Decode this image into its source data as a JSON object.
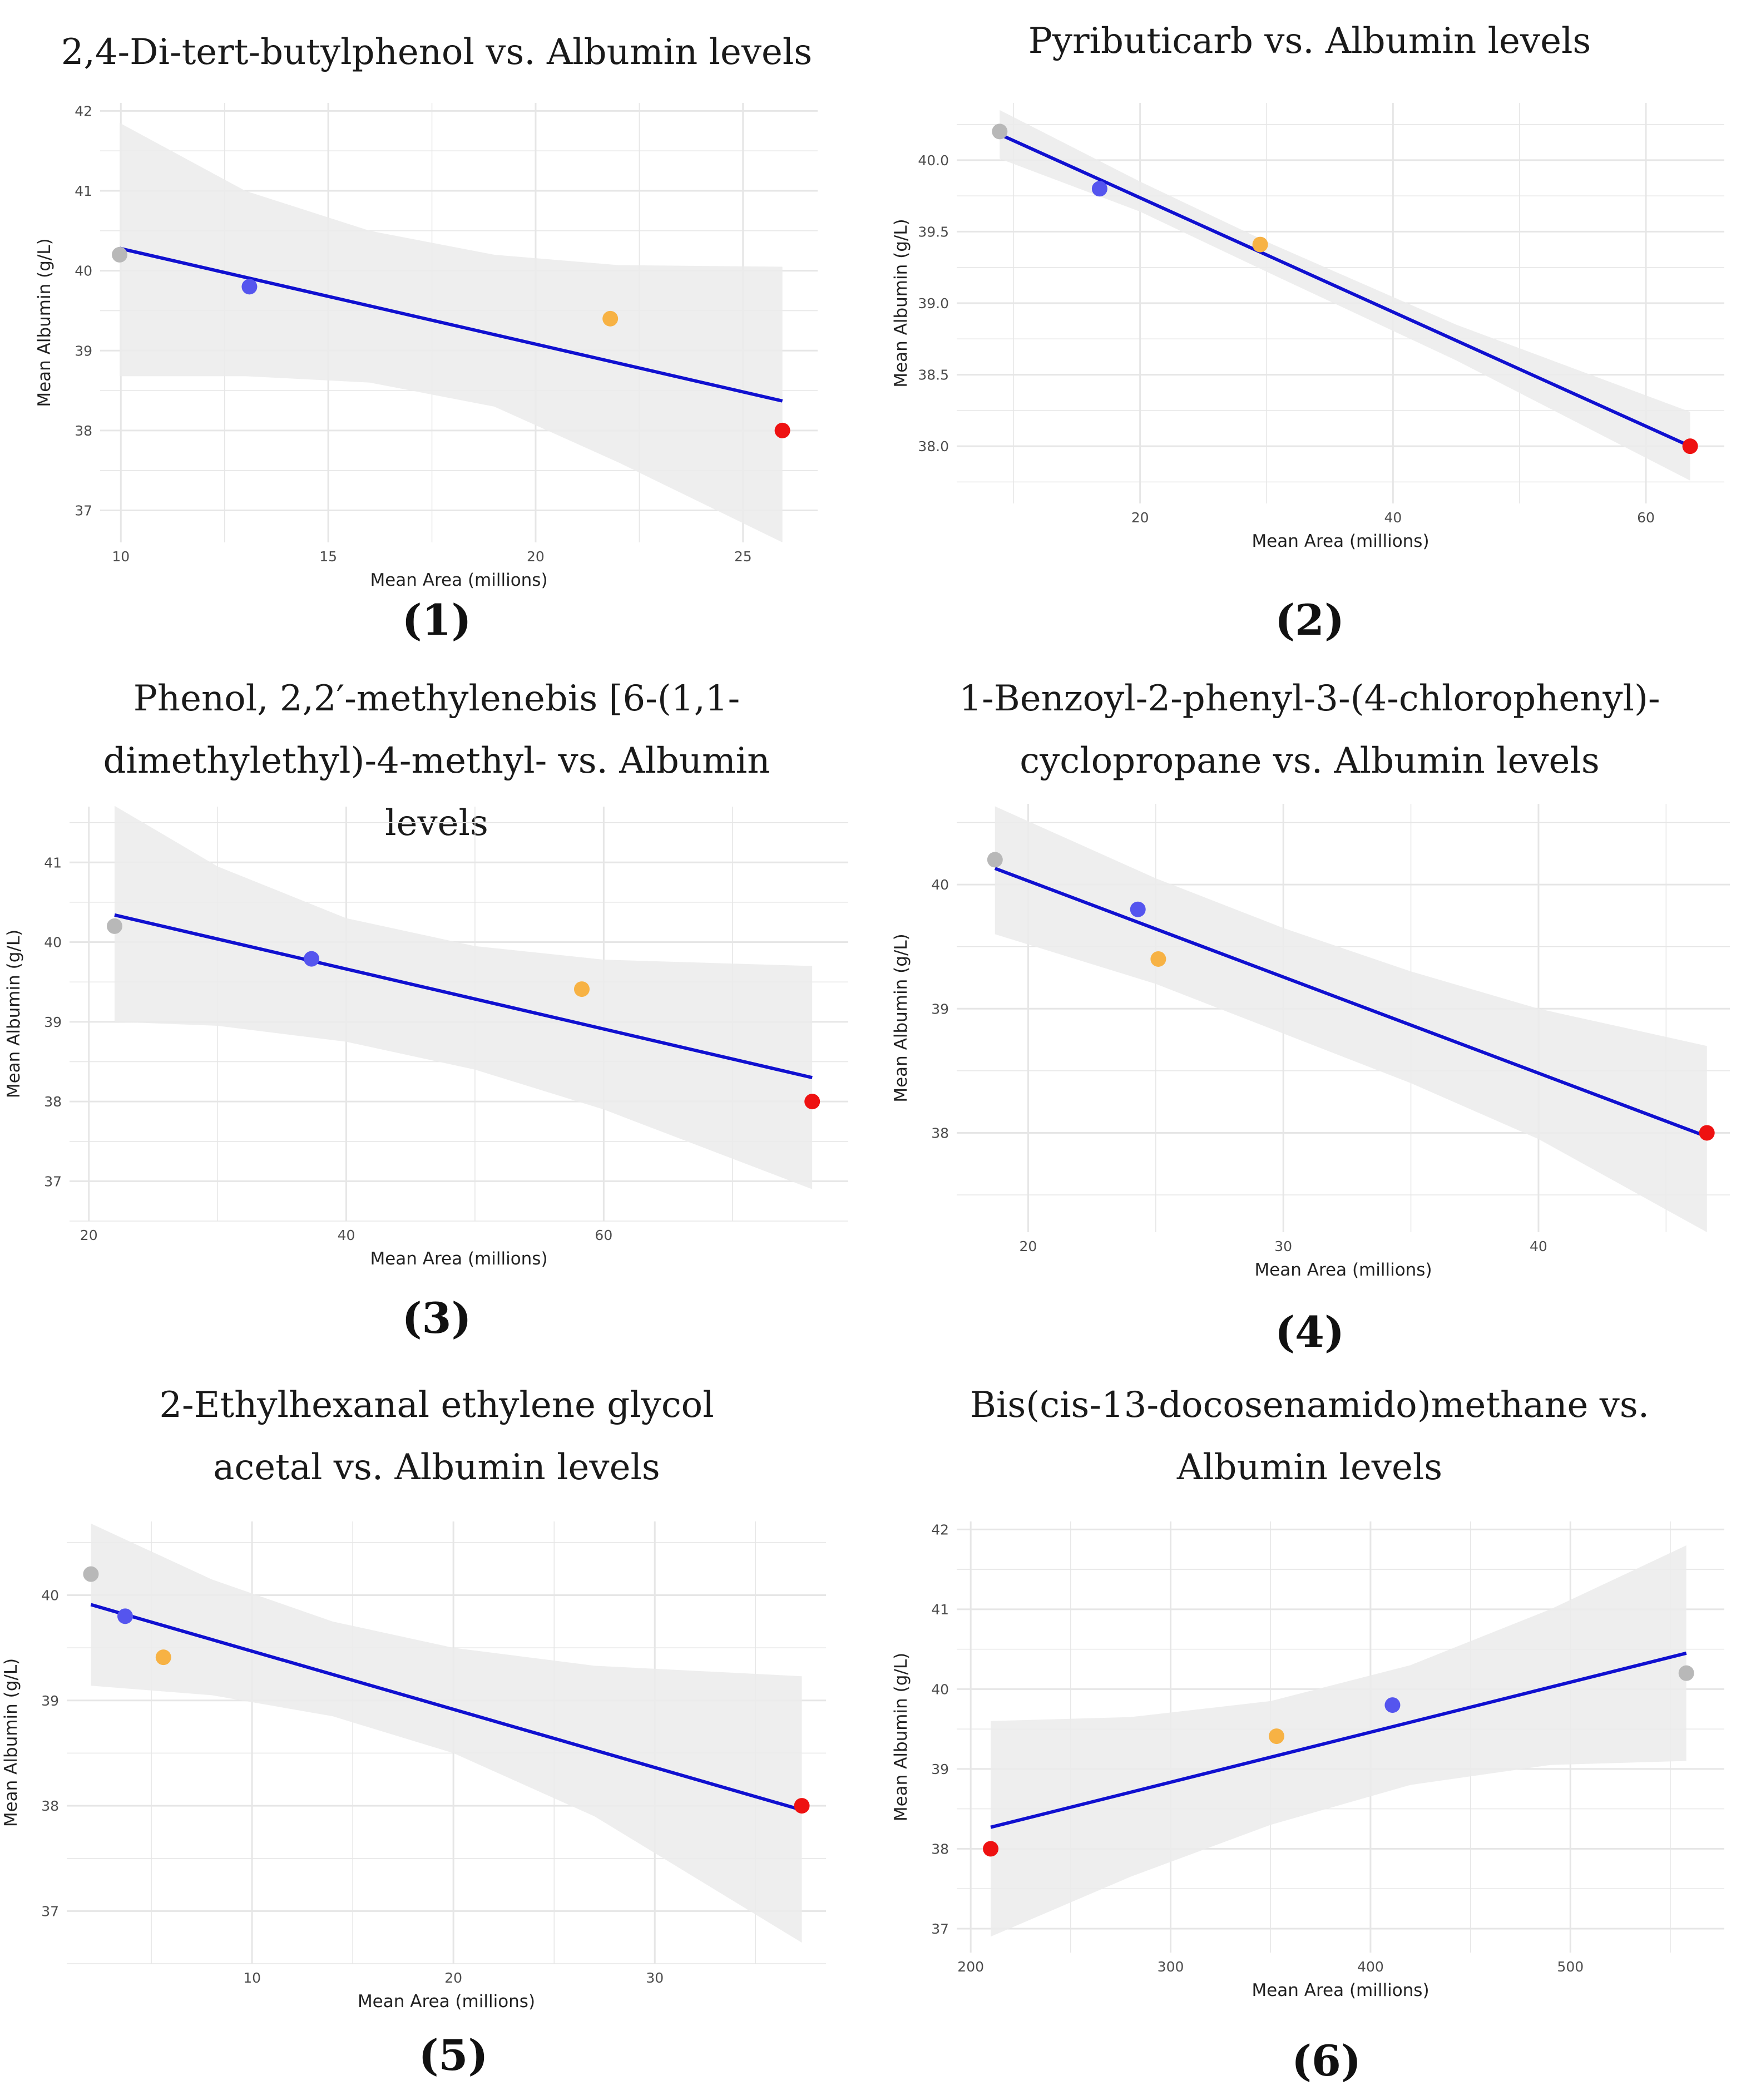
{
  "colors": {
    "band": "#ebebeb",
    "grid": "#e6e6e6",
    "line": "#1010d0",
    "gray": "#b8b8b8",
    "blue": "#5555ee",
    "orange": "#f7b244",
    "red": "#ee1111"
  },
  "chart_data": [
    {
      "type": "scatter",
      "title": "2,4-Di-tert-butylphenol vs. Albumin levels",
      "caption_num": "1",
      "xlabel": "Mean Area (millions)",
      "ylabel": "Mean Albumin (g/L)",
      "xlim": [
        9.5,
        26.8
      ],
      "ylim": [
        36.6,
        42.1
      ],
      "xticks": [
        {
          "v": 10,
          "label": "10"
        },
        {
          "v": 15,
          "label": "15"
        },
        {
          "v": 20,
          "label": "20"
        },
        {
          "v": 25,
          "label": "25"
        }
      ],
      "yticks": [
        {
          "v": 37,
          "label": "37"
        },
        {
          "v": 38,
          "label": "38"
        },
        {
          "v": 39,
          "label": "39"
        },
        {
          "v": 40,
          "label": "40"
        },
        {
          "v": 41,
          "label": "41"
        },
        {
          "v": 42,
          "label": "42"
        }
      ],
      "points": [
        {
          "x": 9.97,
          "y": 40.2,
          "color": "gray"
        },
        {
          "x": 13.1,
          "y": 39.8,
          "color": "blue"
        },
        {
          "x": 21.8,
          "y": 39.4,
          "color": "orange"
        },
        {
          "x": 25.95,
          "y": 38.0,
          "color": "red"
        }
      ],
      "fit": {
        "x": [
          9.97,
          25.95
        ],
        "y": [
          40.28,
          38.37
        ]
      },
      "band_upper": [
        [
          9.97,
          41.85
        ],
        [
          13.0,
          41.0
        ],
        [
          16.0,
          40.5
        ],
        [
          19.0,
          40.2
        ],
        [
          22.0,
          40.07
        ],
        [
          25.95,
          40.05
        ]
      ],
      "band_lower": [
        [
          9.97,
          38.68
        ],
        [
          13.0,
          38.68
        ],
        [
          16.0,
          38.6
        ],
        [
          19.0,
          38.3
        ],
        [
          22.0,
          37.6
        ],
        [
          25.95,
          36.6
        ]
      ]
    },
    {
      "type": "scatter",
      "title": "Pyributicarb vs. Albumin levels",
      "caption_num": "2",
      "xlabel": "Mean Area (millions)",
      "ylabel": "Mean Albumin (g/L)",
      "xlim": [
        5.5,
        66.2
      ],
      "ylim": [
        37.6,
        40.4
      ],
      "xticks": [
        {
          "v": 20,
          "label": "20"
        },
        {
          "v": 40,
          "label": "40"
        },
        {
          "v": 60,
          "label": "60"
        }
      ],
      "yticks": [
        {
          "v": 38.0,
          "label": "38.0"
        },
        {
          "v": 38.5,
          "label": "38.5"
        },
        {
          "v": 39.0,
          "label": "39.0"
        },
        {
          "v": 39.5,
          "label": "39.5"
        },
        {
          "v": 40.0,
          "label": "40.0"
        }
      ],
      "points": [
        {
          "x": 8.9,
          "y": 40.2,
          "color": "gray"
        },
        {
          "x": 16.8,
          "y": 39.8,
          "color": "blue"
        },
        {
          "x": 29.5,
          "y": 39.41,
          "color": "orange"
        },
        {
          "x": 63.5,
          "y": 38.0,
          "color": "red"
        }
      ],
      "fit": {
        "x": [
          8.9,
          63.5
        ],
        "y": [
          40.18,
          38.0
        ]
      },
      "band_upper": [
        [
          8.9,
          40.35
        ],
        [
          20.0,
          39.85
        ],
        [
          30.0,
          39.43
        ],
        [
          45.0,
          38.85
        ],
        [
          63.5,
          38.24
        ]
      ],
      "band_lower": [
        [
          8.9,
          40.01
        ],
        [
          20.0,
          39.64
        ],
        [
          30.0,
          39.22
        ],
        [
          45.0,
          38.6
        ],
        [
          63.5,
          37.76
        ]
      ]
    },
    {
      "type": "scatter",
      "title": "Phenol, 2,2′-methylenebis [6-(1,1-dimethylethyl)-4-methyl- vs. Albumin levels",
      "caption_num": "3",
      "xlabel": "Mean Area (millions)",
      "ylabel": "Mean Albumin (g/L)",
      "xlim": [
        18.5,
        79.0
      ],
      "ylim": [
        36.5,
        41.7
      ],
      "xticks": [
        {
          "v": 20,
          "label": "20"
        },
        {
          "v": 40,
          "label": "40"
        },
        {
          "v": 60,
          "label": "60"
        }
      ],
      "yticks": [
        {
          "v": 37,
          "label": "37"
        },
        {
          "v": 38,
          "label": "38"
        },
        {
          "v": 39,
          "label": "39"
        },
        {
          "v": 40,
          "label": "40"
        },
        {
          "v": 41,
          "label": "41"
        }
      ],
      "points": [
        {
          "x": 22.0,
          "y": 40.2,
          "color": "gray"
        },
        {
          "x": 37.3,
          "y": 39.79,
          "color": "blue"
        },
        {
          "x": 58.3,
          "y": 39.41,
          "color": "orange"
        },
        {
          "x": 76.2,
          "y": 38.0,
          "color": "red"
        }
      ],
      "fit": {
        "x": [
          22.0,
          76.2
        ],
        "y": [
          40.34,
          38.3
        ]
      },
      "band_upper": [
        [
          22.0,
          41.71
        ],
        [
          30.0,
          40.95
        ],
        [
          40.0,
          40.3
        ],
        [
          50.0,
          39.95
        ],
        [
          60.0,
          39.78
        ],
        [
          76.2,
          39.7
        ]
      ],
      "band_lower": [
        [
          22.0,
          39.0
        ],
        [
          30.0,
          38.95
        ],
        [
          40.0,
          38.75
        ],
        [
          50.0,
          38.4
        ],
        [
          60.0,
          37.9
        ],
        [
          76.2,
          36.9
        ]
      ]
    },
    {
      "type": "scatter",
      "title": "1-Benzoyl-2-phenyl-3-(4-chlorophenyl)-cyclopropane vs. Albumin levels",
      "caption_num": "4",
      "xlabel": "Mean Area (millions)",
      "ylabel": "Mean Albumin (g/L)",
      "xlim": [
        17.2,
        47.5
      ],
      "ylim": [
        37.2,
        40.65
      ],
      "xticks": [
        {
          "v": 20,
          "label": "20"
        },
        {
          "v": 30,
          "label": "30"
        },
        {
          "v": 40,
          "label": "40"
        }
      ],
      "yticks": [
        {
          "v": 38,
          "label": "38"
        },
        {
          "v": 39,
          "label": "39"
        },
        {
          "v": 40,
          "label": "40"
        }
      ],
      "points": [
        {
          "x": 18.7,
          "y": 40.2,
          "color": "gray"
        },
        {
          "x": 24.3,
          "y": 39.8,
          "color": "blue"
        },
        {
          "x": 25.1,
          "y": 39.4,
          "color": "orange"
        },
        {
          "x": 46.6,
          "y": 38.0,
          "color": "red"
        }
      ],
      "fit": {
        "x": [
          18.7,
          46.6
        ],
        "y": [
          40.13,
          37.97
        ]
      },
      "band_upper": [
        [
          18.7,
          40.63
        ],
        [
          25.0,
          40.05
        ],
        [
          30.0,
          39.65
        ],
        [
          35.0,
          39.3
        ],
        [
          40.0,
          39.0
        ],
        [
          46.6,
          38.7
        ]
      ],
      "band_lower": [
        [
          18.7,
          39.6
        ],
        [
          25.0,
          39.2
        ],
        [
          30.0,
          38.8
        ],
        [
          35.0,
          38.4
        ],
        [
          40.0,
          37.95
        ],
        [
          46.6,
          37.2
        ]
      ]
    },
    {
      "type": "scatter",
      "title": "2-Ethylhexanal ethylene glycol acetal vs. Albumin levels",
      "caption_num": "5",
      "xlabel": "Mean Area (millions)",
      "ylabel": "Mean Albumin (g/L)",
      "xlim": [
        0.8,
        38.5
      ],
      "ylim": [
        36.5,
        40.7
      ],
      "xticks": [
        {
          "v": 10,
          "label": "10"
        },
        {
          "v": 20,
          "label": "20"
        },
        {
          "v": 30,
          "label": "30"
        }
      ],
      "yticks": [
        {
          "v": 37,
          "label": "37"
        },
        {
          "v": 38,
          "label": "38"
        },
        {
          "v": 39,
          "label": "39"
        },
        {
          "v": 40,
          "label": "40"
        }
      ],
      "points": [
        {
          "x": 2.0,
          "y": 40.2,
          "color": "gray"
        },
        {
          "x": 3.7,
          "y": 39.8,
          "color": "blue"
        },
        {
          "x": 5.6,
          "y": 39.41,
          "color": "orange"
        },
        {
          "x": 37.3,
          "y": 38.0,
          "color": "red"
        }
      ],
      "fit": {
        "x": [
          2.0,
          37.3
        ],
        "y": [
          39.91,
          37.96
        ]
      },
      "band_upper": [
        [
          2.0,
          40.68
        ],
        [
          8.0,
          40.15
        ],
        [
          14.0,
          39.75
        ],
        [
          20.0,
          39.5
        ],
        [
          27.0,
          39.33
        ],
        [
          37.3,
          39.23
        ]
      ],
      "band_lower": [
        [
          2.0,
          39.14
        ],
        [
          8.0,
          39.05
        ],
        [
          14.0,
          38.85
        ],
        [
          20.0,
          38.5
        ],
        [
          27.0,
          37.9
        ],
        [
          37.3,
          36.7
        ]
      ]
    },
    {
      "type": "scatter",
      "title": "Bis(cis-13-docosenamido)methane vs. Albumin levels",
      "caption_num": "6",
      "xlabel": "Mean Area (millions)",
      "ylabel": "Mean Albumin (g/L)",
      "xlim": [
        193,
        577
      ],
      "ylim": [
        36.7,
        42.1
      ],
      "xticks": [
        {
          "v": 200,
          "label": "200"
        },
        {
          "v": 300,
          "label": "300"
        },
        {
          "v": 400,
          "label": "400"
        },
        {
          "v": 500,
          "label": "500"
        }
      ],
      "yticks": [
        {
          "v": 37,
          "label": "37"
        },
        {
          "v": 38,
          "label": "38"
        },
        {
          "v": 39,
          "label": "39"
        },
        {
          "v": 40,
          "label": "40"
        },
        {
          "v": 41,
          "label": "41"
        },
        {
          "v": 42,
          "label": "42"
        }
      ],
      "points": [
        {
          "x": 210,
          "y": 38.0,
          "color": "red"
        },
        {
          "x": 353,
          "y": 39.41,
          "color": "orange"
        },
        {
          "x": 411,
          "y": 39.8,
          "color": "blue"
        },
        {
          "x": 558,
          "y": 40.2,
          "color": "gray"
        }
      ],
      "fit": {
        "x": [
          210,
          558
        ],
        "y": [
          38.27,
          40.45
        ]
      },
      "band_upper": [
        [
          210,
          39.6
        ],
        [
          280,
          39.65
        ],
        [
          350,
          39.85
        ],
        [
          420,
          40.3
        ],
        [
          490,
          41.0
        ],
        [
          558,
          41.8
        ]
      ],
      "band_lower": [
        [
          210,
          36.9
        ],
        [
          280,
          37.65
        ],
        [
          350,
          38.3
        ],
        [
          420,
          38.8
        ],
        [
          490,
          39.05
        ],
        [
          558,
          39.1
        ]
      ]
    }
  ]
}
